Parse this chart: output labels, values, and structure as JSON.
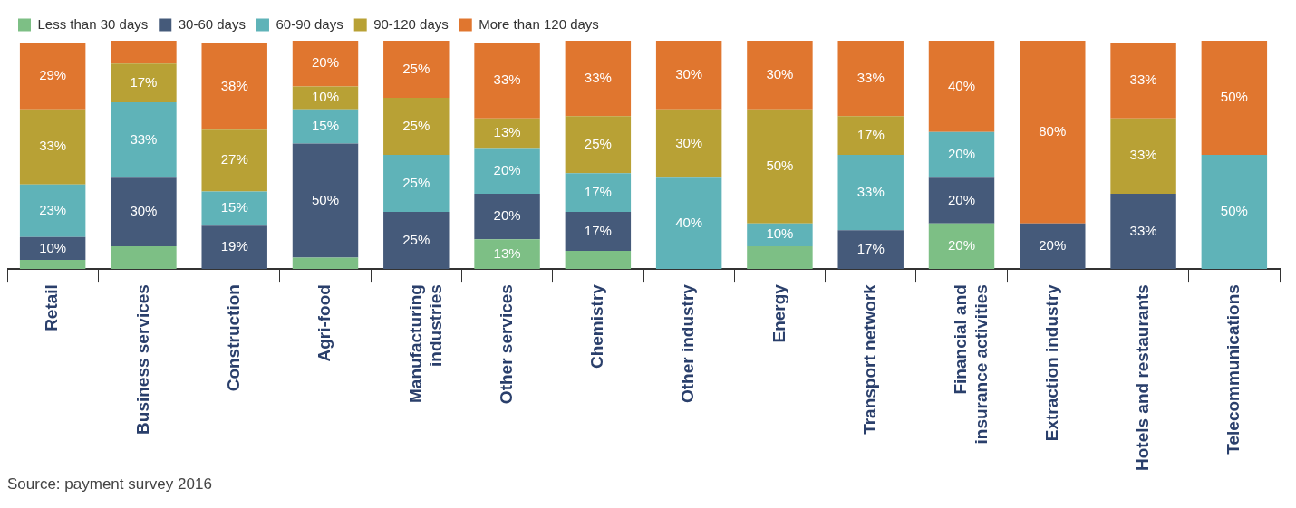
{
  "chart_data": {
    "type": "bar",
    "stacked": true,
    "legend": "top left",
    "grid": false,
    "tick_labels": "x",
    "ylim": [
      0,
      100
    ],
    "categories": [
      "Retail",
      "Business services",
      "Construction",
      "Agri-food",
      "Manufacturing industries",
      "Other services",
      "Chemistry",
      "Other industry",
      "Energy",
      "Transport network",
      "Financial and insurance activities",
      "Extraction industry",
      "Hotels and restaurants",
      "Telecommunications"
    ],
    "series": [
      {
        "name": "Less than 30 days",
        "color": "#7dbf85",
        "values": [
          4,
          10,
          0,
          5,
          0,
          13,
          8,
          0,
          10,
          0,
          20,
          0,
          0,
          0
        ],
        "value_labels": [
          null,
          null,
          null,
          null,
          null,
          "13%",
          null,
          null,
          null,
          null,
          "20%",
          null,
          null,
          null
        ]
      },
      {
        "name": "30-60 days",
        "color": "#455a7a",
        "values": [
          10,
          30,
          19,
          50,
          25,
          20,
          17,
          0,
          0,
          17,
          20,
          20,
          33,
          0
        ],
        "value_labels": [
          "10%",
          "30%",
          "19%",
          "50%",
          "25%",
          "20%",
          "17%",
          null,
          null,
          "17%",
          "20%",
          "20%",
          "33%",
          null
        ]
      },
      {
        "name": "60-90 days",
        "color": "#5fb3b8",
        "values": [
          23,
          33,
          15,
          15,
          25,
          20,
          17,
          40,
          10,
          33,
          20,
          0,
          0,
          50
        ],
        "value_labels": [
          "23%",
          "33%",
          "15%",
          "15%",
          "25%",
          "20%",
          "17%",
          "40%",
          "10%",
          "33%",
          "20%",
          null,
          null,
          "50%"
        ]
      },
      {
        "name": "90-120 days",
        "color": "#b8a135",
        "values": [
          33,
          17,
          27,
          10,
          25,
          13,
          25,
          30,
          50,
          17,
          0,
          0,
          33,
          0
        ],
        "value_labels": [
          "33%",
          "17%",
          "27%",
          "10%",
          "25%",
          "13%",
          "25%",
          "30%",
          "50%",
          "17%",
          null,
          null,
          "33%",
          null
        ]
      },
      {
        "name": "More than 120 days",
        "color": "#e0762f",
        "values": [
          29,
          10,
          38,
          20,
          25,
          33,
          33,
          30,
          30,
          33,
          40,
          80,
          33,
          50
        ],
        "value_labels": [
          "29%",
          null,
          "38%",
          "20%",
          "25%",
          "33%",
          "33%",
          "30%",
          "30%",
          "33%",
          "40%",
          "80%",
          "33%",
          "50%"
        ]
      }
    ],
    "annotations": [
      "Source: payment survey 2016"
    ]
  }
}
